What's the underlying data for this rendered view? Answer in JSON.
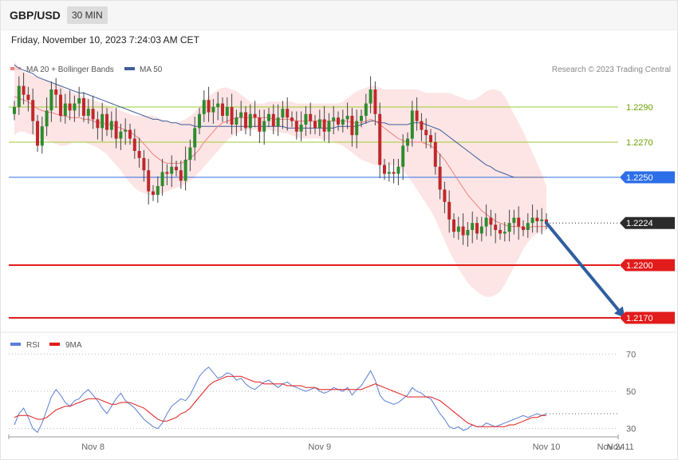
{
  "header": {
    "symbol": "GBP/USD",
    "timeframe": "30 MIN",
    "datetime": "Friday, November 10, 2023 7:24:03 AM CET"
  },
  "legend": {
    "ma20": "MA 20 + Bollinger Bands",
    "ma50": "MA 50",
    "copyright": "Research © 2023 Trading Central",
    "rsi": "RSI",
    "ma9": "9MA"
  },
  "colors": {
    "ma20": "#f08080",
    "band": "#fde0e0",
    "ma50": "#3f5d9a",
    "resistance": "#9acd32",
    "pivot": "#2d6fe8",
    "support": "#e21b1b",
    "current": "#2b2b2b",
    "candle_up": "#2e8b2e",
    "candle_down": "#c0282b",
    "arrow": "#2f5f9f",
    "rsi": "#5b7fd6",
    "rsi_ma": "#e21b1b"
  },
  "chart_data": {
    "type": "line",
    "ylim": [
      1.216,
      1.231
    ],
    "levels": [
      {
        "name": "resistance",
        "value": 1.229,
        "label": "1.2290"
      },
      {
        "name": "resistance",
        "value": 1.227,
        "label": "1.2270"
      },
      {
        "name": "pivot",
        "value": 1.225,
        "label": "1.2250"
      },
      {
        "name": "current",
        "value": 1.2224,
        "label": "1.2224"
      },
      {
        "name": "support",
        "value": 1.22,
        "label": "1.2200"
      },
      {
        "name": "support",
        "value": 1.217,
        "label": "1.2170"
      }
    ],
    "x_ticks": [
      {
        "label": "Nov 8",
        "bar": 17
      },
      {
        "label": "Nov 9",
        "bar": 66
      },
      {
        "label": "Nov 10",
        "bar": 115
      },
      {
        "label": "Nov 11",
        "bar": 131
      },
      {
        "label": "Nov 24",
        "bar": 145
      }
    ],
    "price_close": [
      1.229,
      1.2302,
      1.2297,
      1.2294,
      1.2282,
      1.2268,
      1.2279,
      1.2288,
      1.23,
      1.2297,
      1.2285,
      1.2292,
      1.2288,
      1.2292,
      1.2295,
      1.2285,
      1.2289,
      1.2283,
      1.2278,
      1.2286,
      1.2277,
      1.2282,
      1.2272,
      1.2276,
      1.2277,
      1.2272,
      1.2265,
      1.2261,
      1.2254,
      1.2242,
      1.224,
      1.2245,
      1.2253,
      1.2252,
      1.2256,
      1.2254,
      1.2248,
      1.226,
      1.2267,
      1.2278,
      1.2286,
      1.2294,
      1.2287,
      1.229,
      1.2292,
      1.2285,
      1.229,
      1.228,
      1.2284,
      1.2287,
      1.2278,
      1.2286,
      1.2284,
      1.2276,
      1.2282,
      1.2286,
      1.2279,
      1.2284,
      1.2289,
      1.2284,
      1.2282,
      1.2276,
      1.228,
      1.2286,
      1.2282,
      1.2278,
      1.2283,
      1.2276,
      1.2282,
      1.2284,
      1.228,
      1.2283,
      1.2285,
      1.2274,
      1.2282,
      1.2285,
      1.2292,
      1.23,
      1.2286,
      1.2257,
      1.2252,
      1.2253,
      1.2252,
      1.2256,
      1.2268,
      1.2272,
      1.2288,
      1.2282,
      1.2277,
      1.2274,
      1.227,
      1.2256,
      1.2243,
      1.2236,
      1.2226,
      1.2219,
      1.2222,
      1.2217,
      1.222,
      1.2224,
      1.2218,
      1.2222,
      1.2227,
      1.2223,
      1.222,
      1.2218,
      1.2219,
      1.2224,
      1.2227,
      1.2222,
      1.222,
      1.2224,
      1.2227,
      1.2225,
      1.2226,
      1.2224
    ],
    "ma20": [
      1.2296,
      1.2295,
      1.2294,
      1.2293,
      1.2291,
      1.2289,
      1.2288,
      1.2287,
      1.2287,
      1.2286,
      1.2285,
      1.2285,
      1.2284,
      1.2284,
      1.2284,
      1.2283,
      1.2283,
      1.2282,
      1.2281,
      1.2281,
      1.228,
      1.228,
      1.2279,
      1.2278,
      1.2277,
      1.2276,
      1.2274,
      1.2272,
      1.2269,
      1.2266,
      1.2263,
      1.2261,
      1.2259,
      1.2258,
      1.2258,
      1.2258,
      1.2258,
      1.2259,
      1.2261,
      1.2263,
      1.2266,
      1.227,
      1.2273,
      1.2276,
      1.2279,
      1.2281,
      1.2282,
      1.2283,
      1.2284,
      1.2284,
      1.2284,
      1.2284,
      1.2284,
      1.2284,
      1.2284,
      1.2284,
      1.2283,
      1.2283,
      1.2283,
      1.2283,
      1.2283,
      1.2282,
      1.2282,
      1.2282,
      1.2282,
      1.2282,
      1.2282,
      1.2282,
      1.2282,
      1.2282,
      1.2282,
      1.2282,
      1.2282,
      1.2281,
      1.2281,
      1.2281,
      1.2282,
      1.2283,
      1.2282,
      1.228,
      1.2278,
      1.2276,
      1.2274,
      1.2272,
      1.2271,
      1.227,
      1.227,
      1.227,
      1.227,
      1.2269,
      1.2268,
      1.2266,
      1.2263,
      1.226,
      1.2256,
      1.2252,
      1.2248,
      1.2244,
      1.224,
      1.2237,
      1.2234,
      1.2231,
      1.2229,
      1.2227,
      1.2225,
      1.2224,
      1.2223,
      1.2222,
      1.2222,
      1.2222,
      1.2221,
      1.2221,
      1.2222,
      1.2222,
      1.2222,
      1.2222
    ],
    "ma50": [
      1.2314,
      1.2312,
      1.2311,
      1.231,
      1.2309,
      1.2307,
      1.2306,
      1.2305,
      1.2304,
      1.2303,
      1.2302,
      1.2301,
      1.23,
      1.2299,
      1.2298,
      1.2298,
      1.2297,
      1.2296,
      1.2295,
      1.2294,
      1.2293,
      1.2292,
      1.2291,
      1.229,
      1.2289,
      1.2288,
      1.2287,
      1.2286,
      1.2285,
      1.2284,
      1.2283,
      1.2283,
      1.2282,
      1.2282,
      1.2281,
      1.2281,
      1.228,
      1.228,
      1.228,
      1.2279,
      1.2279,
      1.2279,
      1.2279,
      1.2279,
      1.2279,
      1.2279,
      1.2279,
      1.2279,
      1.2279,
      1.2279,
      1.2279,
      1.2279,
      1.2279,
      1.2279,
      1.2279,
      1.2279,
      1.2279,
      1.2279,
      1.2279,
      1.2278,
      1.2278,
      1.2278,
      1.2278,
      1.2278,
      1.2278,
      1.2278,
      1.2278,
      1.2278,
      1.2278,
      1.2278,
      1.2279,
      1.2279,
      1.2279,
      1.2279,
      1.2279,
      1.228,
      1.2281,
      1.2282,
      1.2282,
      1.2281,
      1.2281,
      1.228,
      1.228,
      1.228,
      1.228,
      1.228,
      1.2281,
      1.2281,
      1.2281,
      1.228,
      1.2279,
      1.2278,
      1.2277,
      1.2275,
      1.2273,
      1.2271,
      1.2269,
      1.2267,
      1.2265,
      1.2263,
      1.2261,
      1.2259,
      1.2257,
      1.2256,
      1.2254,
      1.2253,
      1.2252,
      1.2251,
      1.225,
      1.225,
      1.225,
      1.225,
      1.225,
      1.225,
      1.225,
      1.225
    ],
    "band_upper": [
      1.2316,
      1.2312,
      1.231,
      1.2309,
      1.2308,
      1.2307,
      1.2306,
      1.2305,
      1.2304,
      1.2303,
      1.2302,
      1.23,
      1.2299,
      1.2298,
      1.2297,
      1.2296,
      1.2295,
      1.2294,
      1.2293,
      1.2292,
      1.2291,
      1.229,
      1.2289,
      1.2288,
      1.2287,
      1.2286,
      1.2285,
      1.2285,
      1.2285,
      1.2285,
      1.2285,
      1.2284,
      1.2283,
      1.2282,
      1.2281,
      1.2281,
      1.2282,
      1.2283,
      1.2285,
      1.2287,
      1.229,
      1.2293,
      1.2296,
      1.2298,
      1.23,
      1.2301,
      1.2301,
      1.23,
      1.2299,
      1.2297,
      1.2295,
      1.2293,
      1.2292,
      1.2292,
      1.2292,
      1.2293,
      1.2293,
      1.2293,
      1.2293,
      1.2293,
      1.2293,
      1.2292,
      1.2292,
      1.2292,
      1.2292,
      1.2292,
      1.2292,
      1.2292,
      1.2292,
      1.2292,
      1.2292,
      1.2293,
      1.2295,
      1.2297,
      1.2299,
      1.23,
      1.2301,
      1.2302,
      1.2302,
      1.2301,
      1.23,
      1.23,
      1.23,
      1.23,
      1.23,
      1.23,
      1.23,
      1.23,
      1.2299,
      1.2298,
      1.2298,
      1.2298,
      1.2298,
      1.2298,
      1.2298,
      1.2297,
      1.2296,
      1.2295,
      1.2294,
      1.2294,
      1.2295,
      1.2297,
      1.2299,
      1.23,
      1.23,
      1.2299,
      1.2296,
      1.2291,
      1.2286,
      1.2281,
      1.2276,
      1.227,
      1.2264,
      1.2258,
      1.2252,
      1.2245
    ],
    "band_lower": [
      1.2274,
      1.2276,
      1.2276,
      1.2275,
      1.2274,
      1.2273,
      1.2272,
      1.2271,
      1.227,
      1.2269,
      1.2268,
      1.2268,
      1.2269,
      1.227,
      1.227,
      1.227,
      1.2269,
      1.2268,
      1.2267,
      1.2265,
      1.2263,
      1.226,
      1.2257,
      1.2254,
      1.225,
      1.2247,
      1.2244,
      1.2242,
      1.2241,
      1.224,
      1.224,
      1.224,
      1.2241,
      1.2242,
      1.2243,
      1.2244,
      1.2245,
      1.2246,
      1.2248,
      1.225,
      1.2253,
      1.2256,
      1.2259,
      1.2262,
      1.2265,
      1.2268,
      1.2271,
      1.2273,
      1.2275,
      1.2276,
      1.2277,
      1.2277,
      1.2277,
      1.2277,
      1.2277,
      1.2277,
      1.2276,
      1.2276,
      1.2275,
      1.2275,
      1.2274,
      1.2273,
      1.2272,
      1.2272,
      1.2272,
      1.2272,
      1.2272,
      1.2271,
      1.2271,
      1.227,
      1.2269,
      1.2268,
      1.2266,
      1.2264,
      1.2262,
      1.226,
      1.2259,
      1.2258,
      1.2257,
      1.2257,
      1.2257,
      1.2257,
      1.2257,
      1.2256,
      1.2254,
      1.2251,
      1.2247,
      1.2243,
      1.2239,
      1.2235,
      1.2231,
      1.2226,
      1.222,
      1.2214,
      1.2208,
      1.2203,
      1.2198,
      1.2194,
      1.219,
      1.2187,
      1.2185,
      1.2183,
      1.2182,
      1.2182,
      1.2183,
      1.2185,
      1.2189,
      1.2194,
      1.2199,
      1.2204,
      1.2209,
      1.2213,
      1.2216,
      1.2218,
      1.2219,
      1.222
    ],
    "projection": {
      "from": [
        115,
        1.2224
      ],
      "to": [
        132,
        1.217
      ]
    },
    "rsi": {
      "ylim": [
        20,
        80
      ],
      "levels": [
        {
          "value": 70,
          "label": "70"
        },
        {
          "value": 50,
          "label": "50"
        },
        {
          "value": 30,
          "label": "30"
        }
      ],
      "values": [
        32,
        38,
        41,
        36,
        30,
        28,
        33,
        40,
        47,
        51,
        48,
        44,
        42,
        45,
        46,
        49,
        51,
        48,
        45,
        41,
        38,
        42,
        46,
        49,
        45,
        43,
        41,
        38,
        35,
        33,
        31,
        30,
        33,
        38,
        42,
        44,
        46,
        45,
        48,
        53,
        58,
        61,
        63,
        60,
        57,
        58,
        60,
        59,
        56,
        57,
        54,
        52,
        51,
        53,
        55,
        56,
        54,
        52,
        54,
        55,
        53,
        52,
        51,
        50,
        51,
        52,
        50,
        49,
        50,
        52,
        51,
        50,
        52,
        48,
        51,
        53,
        57,
        61,
        56,
        48,
        45,
        44,
        43,
        44,
        46,
        48,
        52,
        50,
        49,
        47,
        46,
        42,
        38,
        35,
        31,
        30,
        31,
        29,
        30,
        32,
        31,
        31,
        33,
        32,
        31,
        32,
        33,
        34,
        35,
        36,
        37,
        36,
        37,
        38,
        37,
        38
      ],
      "ma9": [
        36,
        37,
        37,
        37,
        36,
        35,
        35,
        36,
        38,
        40,
        41,
        42,
        42,
        43,
        44,
        45,
        46,
        46,
        46,
        45,
        44,
        43,
        43,
        44,
        44,
        44,
        43,
        42,
        41,
        39,
        37,
        35,
        34,
        34,
        35,
        36,
        38,
        39,
        41,
        44,
        47,
        50,
        53,
        55,
        56,
        57,
        58,
        58,
        58,
        58,
        57,
        56,
        55,
        55,
        54,
        54,
        54,
        54,
        54,
        53,
        53,
        53,
        53,
        52,
        52,
        52,
        51,
        51,
        51,
        51,
        51,
        51,
        51,
        51,
        51,
        51,
        52,
        53,
        54,
        53,
        52,
        51,
        50,
        49,
        48,
        47,
        47,
        47,
        47,
        47,
        47,
        46,
        45,
        43,
        41,
        39,
        37,
        35,
        33,
        32,
        31,
        31,
        31,
        31,
        31,
        31,
        31,
        32,
        32,
        33,
        34,
        35,
        36,
        36,
        37,
        37
      ]
    }
  }
}
